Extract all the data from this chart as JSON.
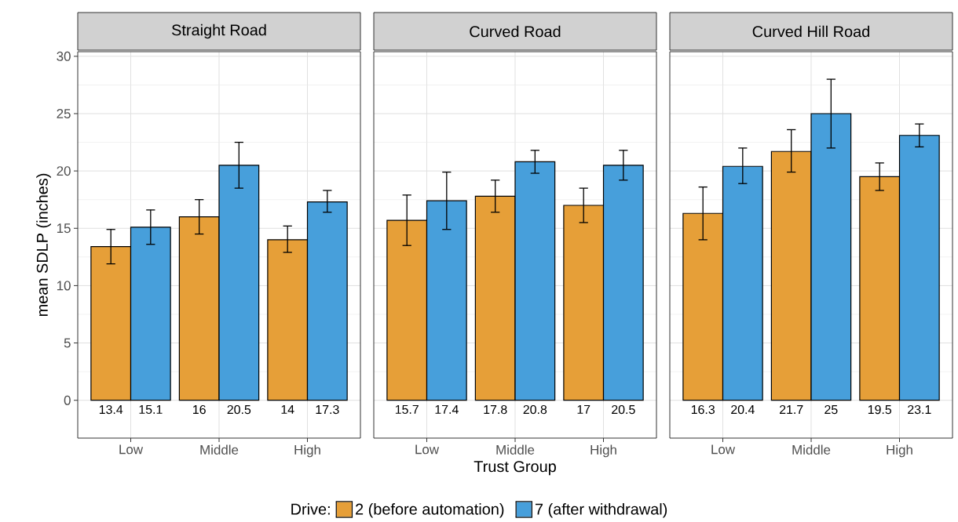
{
  "chart_data": [
    {
      "type": "bar",
      "title": "Straight Road",
      "ylabel": "mean SDLP (inches)",
      "categories": [
        "Low",
        "Middle",
        "High"
      ],
      "series": [
        {
          "color": "#e69f38",
          "values": [
            13.4,
            16,
            14
          ],
          "errors": [
            [
              11.9,
              14.9
            ],
            [
              14.5,
              17.5
            ],
            [
              12.9,
              15.2
            ]
          ]
        },
        {
          "color": "#479fdb",
          "values": [
            15.1,
            20.5,
            17.3
          ],
          "errors": [
            [
              13.6,
              16.6
            ],
            [
              18.5,
              22.5
            ],
            [
              16.4,
              18.3
            ]
          ]
        }
      ],
      "data_labels": true,
      "ylim": [
        -3.3,
        30.4
      ],
      "yticks": [
        0,
        5,
        10,
        15,
        20,
        25,
        30
      ],
      "grid": true
    },
    {
      "type": "bar",
      "title": "Curved Road",
      "xlabel": "Trust Group",
      "legend_title": "Drive:",
      "categories": [
        "Low",
        "Middle",
        "High"
      ],
      "series": [
        {
          "name": "2 (before automation)",
          "color": "#e69f38",
          "values": [
            15.7,
            17.8,
            17
          ],
          "errors": [
            [
              13.5,
              17.9
            ],
            [
              16.4,
              19.2
            ],
            [
              15.5,
              18.5
            ]
          ]
        },
        {
          "name": "7 (after withdrawal)",
          "color": "#479fdb",
          "values": [
            17.4,
            20.8,
            20.5
          ],
          "errors": [
            [
              14.9,
              19.9
            ],
            [
              19.8,
              21.8
            ],
            [
              19.2,
              21.8
            ]
          ]
        }
      ],
      "data_labels": true,
      "ylim": [
        -3.3,
        30.4
      ],
      "yticks": [
        0,
        5,
        10,
        15,
        20,
        25,
        30
      ],
      "grid": true,
      "legend": "bottom",
      "tick_labels": "x"
    },
    {
      "type": "bar",
      "title": "Curved Hill Road",
      "categories": [
        "Low",
        "Middle",
        "High"
      ],
      "series": [
        {
          "color": "#e69f38",
          "values": [
            16.3,
            21.7,
            19.5
          ],
          "errors": [
            [
              14.0,
              18.6
            ],
            [
              19.9,
              23.6
            ],
            [
              18.3,
              20.7
            ]
          ]
        },
        {
          "color": "#479fdb",
          "values": [
            20.4,
            25,
            23.1
          ],
          "errors": [
            [
              18.9,
              22.0
            ],
            [
              22.0,
              28.0
            ],
            [
              22.1,
              24.1
            ]
          ]
        }
      ],
      "data_labels": true,
      "ylim": [
        -3.3,
        30.4
      ],
      "yticks": [
        0,
        5,
        10,
        15,
        20,
        25,
        30
      ],
      "grid": true,
      "tick_labels": "x"
    }
  ]
}
